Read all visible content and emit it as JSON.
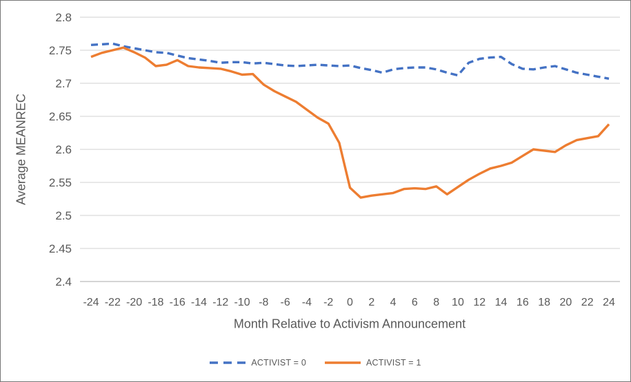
{
  "chart_data": {
    "type": "line",
    "title": "",
    "xlabel": "Month Relative to Activism Announcement",
    "ylabel": "Average MEANREC",
    "x": [
      -24,
      -23,
      -22,
      -21,
      -20,
      -19,
      -18,
      -17,
      -16,
      -15,
      -14,
      -13,
      -12,
      -11,
      -10,
      -9,
      -8,
      -7,
      -6,
      -5,
      -4,
      -3,
      -2,
      -1,
      0,
      1,
      2,
      3,
      4,
      5,
      6,
      7,
      8,
      9,
      10,
      11,
      12,
      13,
      14,
      15,
      16,
      17,
      18,
      19,
      20,
      21,
      22,
      23,
      24
    ],
    "series": [
      {
        "name": "ACTIVIST = 0",
        "color": "#4472C4",
        "style": "dashed",
        "values": [
          2.758,
          2.759,
          2.76,
          2.756,
          2.753,
          2.75,
          2.747,
          2.746,
          2.742,
          2.738,
          2.736,
          2.734,
          2.731,
          2.732,
          2.732,
          2.73,
          2.731,
          2.729,
          2.727,
          2.726,
          2.727,
          2.728,
          2.727,
          2.726,
          2.727,
          2.723,
          2.72,
          2.716,
          2.721,
          2.723,
          2.724,
          2.724,
          2.721,
          2.716,
          2.712,
          2.731,
          2.737,
          2.739,
          2.74,
          2.729,
          2.722,
          2.721,
          2.724,
          2.726,
          2.721,
          2.716,
          2.713,
          2.71,
          2.707
        ]
      },
      {
        "name": "ACTIVIST = 1",
        "color": "#ED7D31",
        "style": "solid",
        "values": [
          2.74,
          2.746,
          2.75,
          2.754,
          2.747,
          2.739,
          2.726,
          2.728,
          2.735,
          2.726,
          2.724,
          2.723,
          2.722,
          2.718,
          2.713,
          2.714,
          2.698,
          2.688,
          2.68,
          2.672,
          2.66,
          2.648,
          2.639,
          2.61,
          2.542,
          2.527,
          2.53,
          2.532,
          2.534,
          2.54,
          2.541,
          2.54,
          2.544,
          2.532,
          2.543,
          2.554,
          2.563,
          2.571,
          2.575,
          2.58,
          2.59,
          2.6,
          2.598,
          2.596,
          2.606,
          2.614,
          2.617,
          2.62,
          2.638
        ]
      }
    ],
    "ylim": [
      2.4,
      2.8
    ],
    "yticks": [
      "2.8",
      "2.75",
      "2.7",
      "2.65",
      "2.6",
      "2.55",
      "2.5",
      "2.45",
      "2.4"
    ],
    "xticks": [
      -24,
      -22,
      -20,
      -18,
      -16,
      -14,
      -12,
      -10,
      -8,
      -6,
      -4,
      -2,
      0,
      2,
      4,
      6,
      8,
      10,
      12,
      14,
      16,
      18,
      20,
      22,
      24
    ],
    "grid": "horizontal",
    "legend_position": "bottom",
    "colors": {
      "text": "#595959",
      "grid": "#D9D9D9",
      "axis_line": "#BFBFBF",
      "background": "#FFFFFF",
      "frame_border": "#767676"
    }
  }
}
